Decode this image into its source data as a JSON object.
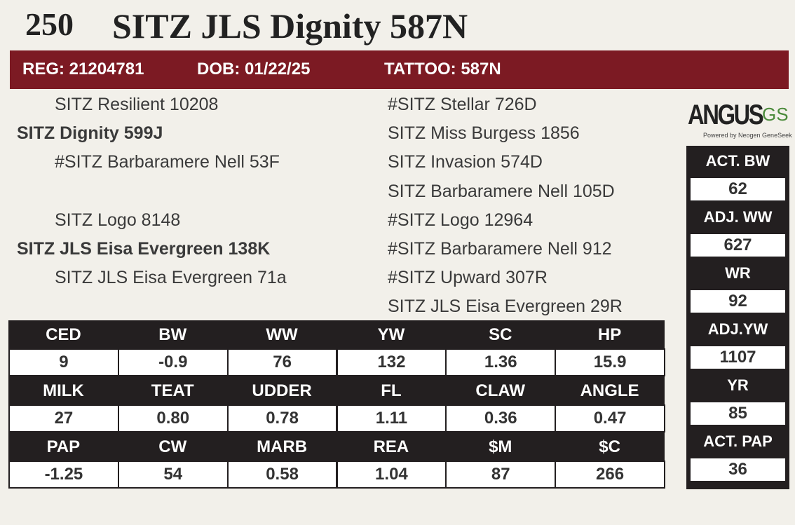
{
  "header": {
    "lot": "250",
    "title": "SITZ JLS Dignity 587N"
  },
  "id_bar": {
    "reg": "REG: 21204781",
    "dob": "DOB: 01/22/25",
    "tattoo": "TATTOO: 587N"
  },
  "pedigree": {
    "sire": {
      "sire": "SITZ Resilient 10208",
      "name": "SITZ Dignity 599J",
      "dam": "#SITZ Barbaramere Nell 53F"
    },
    "dam": {
      "sire": "SITZ Logo 8148",
      "name": "SITZ JLS Eisa Evergreen 138K",
      "dam": "SITZ JLS Eisa Evergreen 71a"
    },
    "right": [
      "#SITZ Stellar 726D",
      "SITZ Miss Burgess 1856",
      "SITZ Invasion 574D",
      "SITZ Barbaramere Nell 105D",
      "#SITZ Logo 12964",
      "#SITZ Barbaramere Nell 912",
      "#SITZ Upward 307R",
      "SITZ JLS Eisa Evergreen 29R"
    ]
  },
  "logo": {
    "mark": "ANGUS",
    "suffix": "GS",
    "tagline": "Powered by Neogen GeneSeek"
  },
  "epd_table": {
    "rows": [
      {
        "headers": [
          "CED",
          "BW",
          "WW",
          "YW",
          "SC",
          "HP"
        ],
        "values": [
          "9",
          "-0.9",
          "76",
          "132",
          "1.36",
          "15.9"
        ]
      },
      {
        "headers": [
          "MILK",
          "TEAT",
          "UDDER",
          "FL",
          "CLAW",
          "ANGLE"
        ],
        "values": [
          "27",
          "0.80",
          "0.78",
          "1.11",
          "0.36",
          "0.47"
        ]
      },
      {
        "headers": [
          "PAP",
          "CW",
          "MARB",
          "REA",
          "$M",
          "$C"
        ],
        "values": [
          "-1.25",
          "54",
          "0.58",
          "1.04",
          "87",
          "266"
        ]
      }
    ]
  },
  "performance": [
    {
      "label": "ACT. BW",
      "value": "62"
    },
    {
      "label": "ADJ. WW",
      "value": "627"
    },
    {
      "label": "WR",
      "value": "92"
    },
    {
      "label": "ADJ.YW",
      "value": "1107"
    },
    {
      "label": "YR",
      "value": "85"
    },
    {
      "label": "ACT. PAP",
      "value": "36"
    }
  ]
}
